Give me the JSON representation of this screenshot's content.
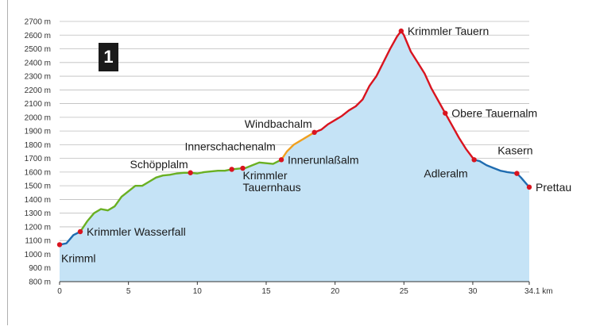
{
  "badge": "1",
  "chart_data": {
    "type": "area",
    "title": "",
    "xlabel": "",
    "ylabel": "",
    "x_unit": "km",
    "y_unit": "m",
    "xlim": [
      0,
      34.1
    ],
    "ylim": [
      800,
      2700
    ],
    "x_ticks": [
      "0",
      "5",
      "10",
      "15",
      "20",
      "25",
      "30",
      "34.1 km"
    ],
    "x_tick_values": [
      0,
      5,
      10,
      15,
      20,
      25,
      30,
      34.1
    ],
    "y_ticks": [
      "800 m",
      "900 m",
      "1000 m",
      "1100 m",
      "1200 m",
      "1300 m",
      "1400 m",
      "1500 m",
      "1600 m",
      "1700 m",
      "1800 m",
      "1900 m",
      "2000 m",
      "2100 m",
      "2200 m",
      "2300 m",
      "2400 m",
      "2500 m",
      "2600 m",
      "2700 m"
    ],
    "y_tick_values": [
      800,
      900,
      1000,
      1100,
      1200,
      1300,
      1400,
      1500,
      1600,
      1700,
      1800,
      1900,
      2000,
      2100,
      2200,
      2300,
      2400,
      2500,
      2600,
      2700
    ],
    "grid": true,
    "fill_color": "#c5e3f6",
    "colors": {
      "blue": "#1f6cb0",
      "green": "#6ab023",
      "orange": "#f0a020",
      "red": "#d9141f",
      "marker": "#d9141f"
    },
    "profile": [
      [
        0,
        1070
      ],
      [
        0.5,
        1080
      ],
      [
        1.0,
        1140
      ],
      [
        1.5,
        1165
      ],
      [
        2.0,
        1240
      ],
      [
        2.5,
        1300
      ],
      [
        3.0,
        1330
      ],
      [
        3.5,
        1320
      ],
      [
        4.0,
        1350
      ],
      [
        4.5,
        1420
      ],
      [
        5.0,
        1460
      ],
      [
        5.5,
        1500
      ],
      [
        6.0,
        1500
      ],
      [
        6.5,
        1530
      ],
      [
        7.0,
        1560
      ],
      [
        7.5,
        1575
      ],
      [
        8.0,
        1580
      ],
      [
        8.5,
        1590
      ],
      [
        9.0,
        1595
      ],
      [
        9.5,
        1595
      ],
      [
        10.0,
        1590
      ],
      [
        10.5,
        1600
      ],
      [
        11.0,
        1605
      ],
      [
        11.5,
        1610
      ],
      [
        12.0,
        1610
      ],
      [
        12.5,
        1620
      ],
      [
        13.0,
        1625
      ],
      [
        13.5,
        1630
      ],
      [
        14.0,
        1650
      ],
      [
        14.5,
        1670
      ],
      [
        15.0,
        1665
      ],
      [
        15.5,
        1660
      ],
      [
        16.1,
        1690
      ],
      [
        16.5,
        1750
      ],
      [
        17.0,
        1800
      ],
      [
        17.5,
        1830
      ],
      [
        18.5,
        1890
      ],
      [
        19.0,
        1910
      ],
      [
        19.5,
        1950
      ],
      [
        20.0,
        1980
      ],
      [
        20.5,
        2010
      ],
      [
        21.0,
        2050
      ],
      [
        21.5,
        2080
      ],
      [
        22.0,
        2130
      ],
      [
        22.5,
        2230
      ],
      [
        23.0,
        2300
      ],
      [
        23.5,
        2400
      ],
      [
        24.0,
        2500
      ],
      [
        24.5,
        2590
      ],
      [
        24.8,
        2630
      ],
      [
        25.0,
        2600
      ],
      [
        25.5,
        2480
      ],
      [
        26.0,
        2400
      ],
      [
        26.5,
        2320
      ],
      [
        27.0,
        2210
      ],
      [
        27.5,
        2120
      ],
      [
        28.0,
        2030
      ],
      [
        28.5,
        1940
      ],
      [
        29.0,
        1850
      ],
      [
        29.5,
        1770
      ],
      [
        30.1,
        1690
      ],
      [
        30.5,
        1680
      ],
      [
        31.0,
        1650
      ],
      [
        31.5,
        1630
      ],
      [
        32.0,
        1610
      ],
      [
        32.5,
        1600
      ],
      [
        33.2,
        1590
      ],
      [
        33.5,
        1560
      ],
      [
        34.1,
        1490
      ]
    ],
    "segments": [
      {
        "from": 0,
        "to": 1.5,
        "color": "blue"
      },
      {
        "from": 1.5,
        "to": 16.1,
        "color": "green"
      },
      {
        "from": 16.1,
        "to": 18.5,
        "color": "orange"
      },
      {
        "from": 18.5,
        "to": 30.1,
        "color": "red"
      },
      {
        "from": 30.1,
        "to": 34.1,
        "color": "blue"
      }
    ],
    "waypoints": [
      {
        "name": "Krimml",
        "km": 0,
        "alt": 1070,
        "label_pos": "below-right"
      },
      {
        "name": "Krimmler Wasserfall",
        "km": 1.5,
        "alt": 1165,
        "label_pos": "right"
      },
      {
        "name": "Schöpplalm",
        "km": 9.5,
        "alt": 1595,
        "label_pos": "above-left"
      },
      {
        "name": "Innerschachenalm",
        "km": 12.5,
        "alt": 1620,
        "label_pos": "above"
      },
      {
        "name": "Krimmler Tauernhaus",
        "km": 13.3,
        "alt": 1628,
        "label_pos": "below"
      },
      {
        "name": "Innerunlaßalm",
        "km": 16.1,
        "alt": 1690,
        "label_pos": "right"
      },
      {
        "name": "Windbachalm",
        "km": 18.5,
        "alt": 1890,
        "label_pos": "above-left"
      },
      {
        "name": "Krimmler Tauern",
        "km": 24.8,
        "alt": 2630,
        "label_pos": "right"
      },
      {
        "name": "Obere Tauernalm",
        "km": 28.0,
        "alt": 2030,
        "label_pos": "right"
      },
      {
        "name": "Adleralm",
        "km": 30.1,
        "alt": 1690,
        "label_pos": "below-left"
      },
      {
        "name": "Kasern",
        "km": 33.2,
        "alt": 1590,
        "label_pos": "above"
      },
      {
        "name": "Prettau",
        "km": 34.1,
        "alt": 1490,
        "label_pos": "right"
      }
    ]
  }
}
